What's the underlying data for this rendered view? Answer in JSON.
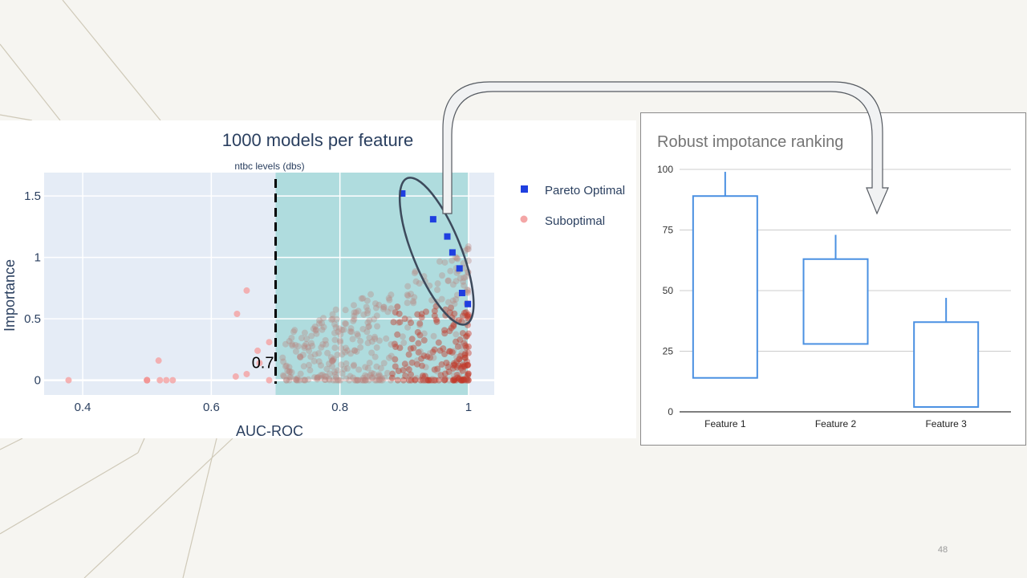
{
  "slide": {
    "page_number": "48"
  },
  "chart_data": [
    {
      "type": "scatter",
      "title": "1000 models per feature",
      "subtitle": "ntbc levels (dbs)",
      "xlabel": "AUC-ROC",
      "ylabel": "Importance",
      "xlim": [
        0.34,
        1.04
      ],
      "ylim": [
        -0.12,
        1.69
      ],
      "xticks": [
        0.4,
        0.6,
        0.8,
        1
      ],
      "xtick_labels": [
        "0.4",
        "0.6",
        "0.8",
        "1"
      ],
      "yticks": [
        0,
        0.5,
        1,
        1.5
      ],
      "ytick_labels": [
        "0",
        "0.5",
        "1",
        "1.5"
      ],
      "grid": true,
      "legend_position": "right",
      "threshold": {
        "x": 0.7,
        "label": "0.7",
        "shaded_region": [
          0.7,
          1.0
        ],
        "shade_color": "#a8dadc"
      },
      "colors": {
        "plot_bg": "#e5ecf6",
        "pareto": "#1f3fe0",
        "suboptimal_light": "#f4a6a6",
        "suboptimal_dark": "#c0392b",
        "below_threshold_dark": "#e0302a",
        "annotation": "#3d4a5c"
      },
      "series": [
        {
          "name": "Pareto Optimal",
          "marker": "square",
          "x": [
            0.897,
            0.945,
            0.967,
            0.975,
            0.986,
            0.99,
            0.999
          ],
          "y": [
            1.52,
            1.31,
            1.17,
            1.04,
            0.91,
            0.71,
            0.62
          ]
        },
        {
          "name": "Suboptimal",
          "marker": "circle",
          "x": [
            0.378,
            0.5,
            0.5,
            0.518,
            0.52,
            0.53,
            0.54,
            0.638,
            0.64,
            0.655,
            0.655,
            0.672,
            0.675,
            0.69,
            0.69
          ],
          "y": [
            0.0,
            0.0,
            0.0,
            0.16,
            0.0,
            0.0,
            0.0,
            0.03,
            0.54,
            0.73,
            0.05,
            0.24,
            0.14,
            0.31,
            0.0
          ],
          "note_on_dense_region": "additional ~950 points scattered in x 0.7-1.0, y 0-1.05"
        }
      ]
    },
    {
      "type": "box",
      "title": "Robust impotance ranking",
      "categories": [
        "Feature 1",
        "Feature 2",
        "Feature 3"
      ],
      "ylim": [
        0,
        100
      ],
      "yticks": [
        0,
        25,
        50,
        75,
        100
      ],
      "ytick_labels": [
        "0",
        "25",
        "50",
        "75",
        "100"
      ],
      "grid": true,
      "boxes": [
        {
          "low": 14,
          "high": 89,
          "whisker_top": 99
        },
        {
          "low": 28,
          "high": 63,
          "whisker_top": 73
        },
        {
          "low": 2,
          "high": 37,
          "whisker_top": 47
        }
      ],
      "colors": {
        "box": "#4a90e2"
      }
    }
  ]
}
